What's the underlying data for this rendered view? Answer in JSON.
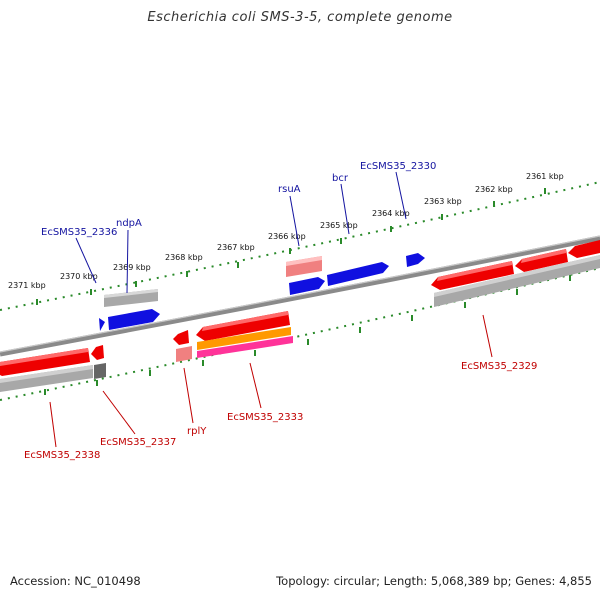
{
  "title": "Escherichia coli SMS-3-5, complete genome",
  "footer": {
    "accession": "Accession: NC_010498",
    "summary": "Topology: circular; Length: 5,068,389 bp; Genes: 4,855"
  },
  "colors": {
    "backbone": "#8a8a8a",
    "forward_gene": "#1010e0",
    "reverse_gene": "#ee0000",
    "rna": "#ff8080",
    "pseudo": "#a8a8a8",
    "orange": "#ff9900",
    "magenta": "#ff3399",
    "tick": "#2a8a2a",
    "label_blue": "#1414a0",
    "label_red": "#c00000"
  },
  "scale_labels": [
    "2371 kbp",
    "2370 kbp",
    "2369 kbp",
    "2368 kbp",
    "2367 kbp",
    "2366 kbp",
    "2365 kbp",
    "2364 kbp",
    "2363 kbp",
    "2362 kbp",
    "2361 kbp"
  ],
  "top_gene_labels": [
    "EcSMS35_2336",
    "ndpA",
    "rsuA",
    "bcr",
    "EcSMS35_2330"
  ],
  "bottom_gene_labels": [
    "EcSMS35_2338",
    "EcSMS35_2337",
    "rplY",
    "EcSMS35_2333",
    "EcSMS35_2329"
  ]
}
